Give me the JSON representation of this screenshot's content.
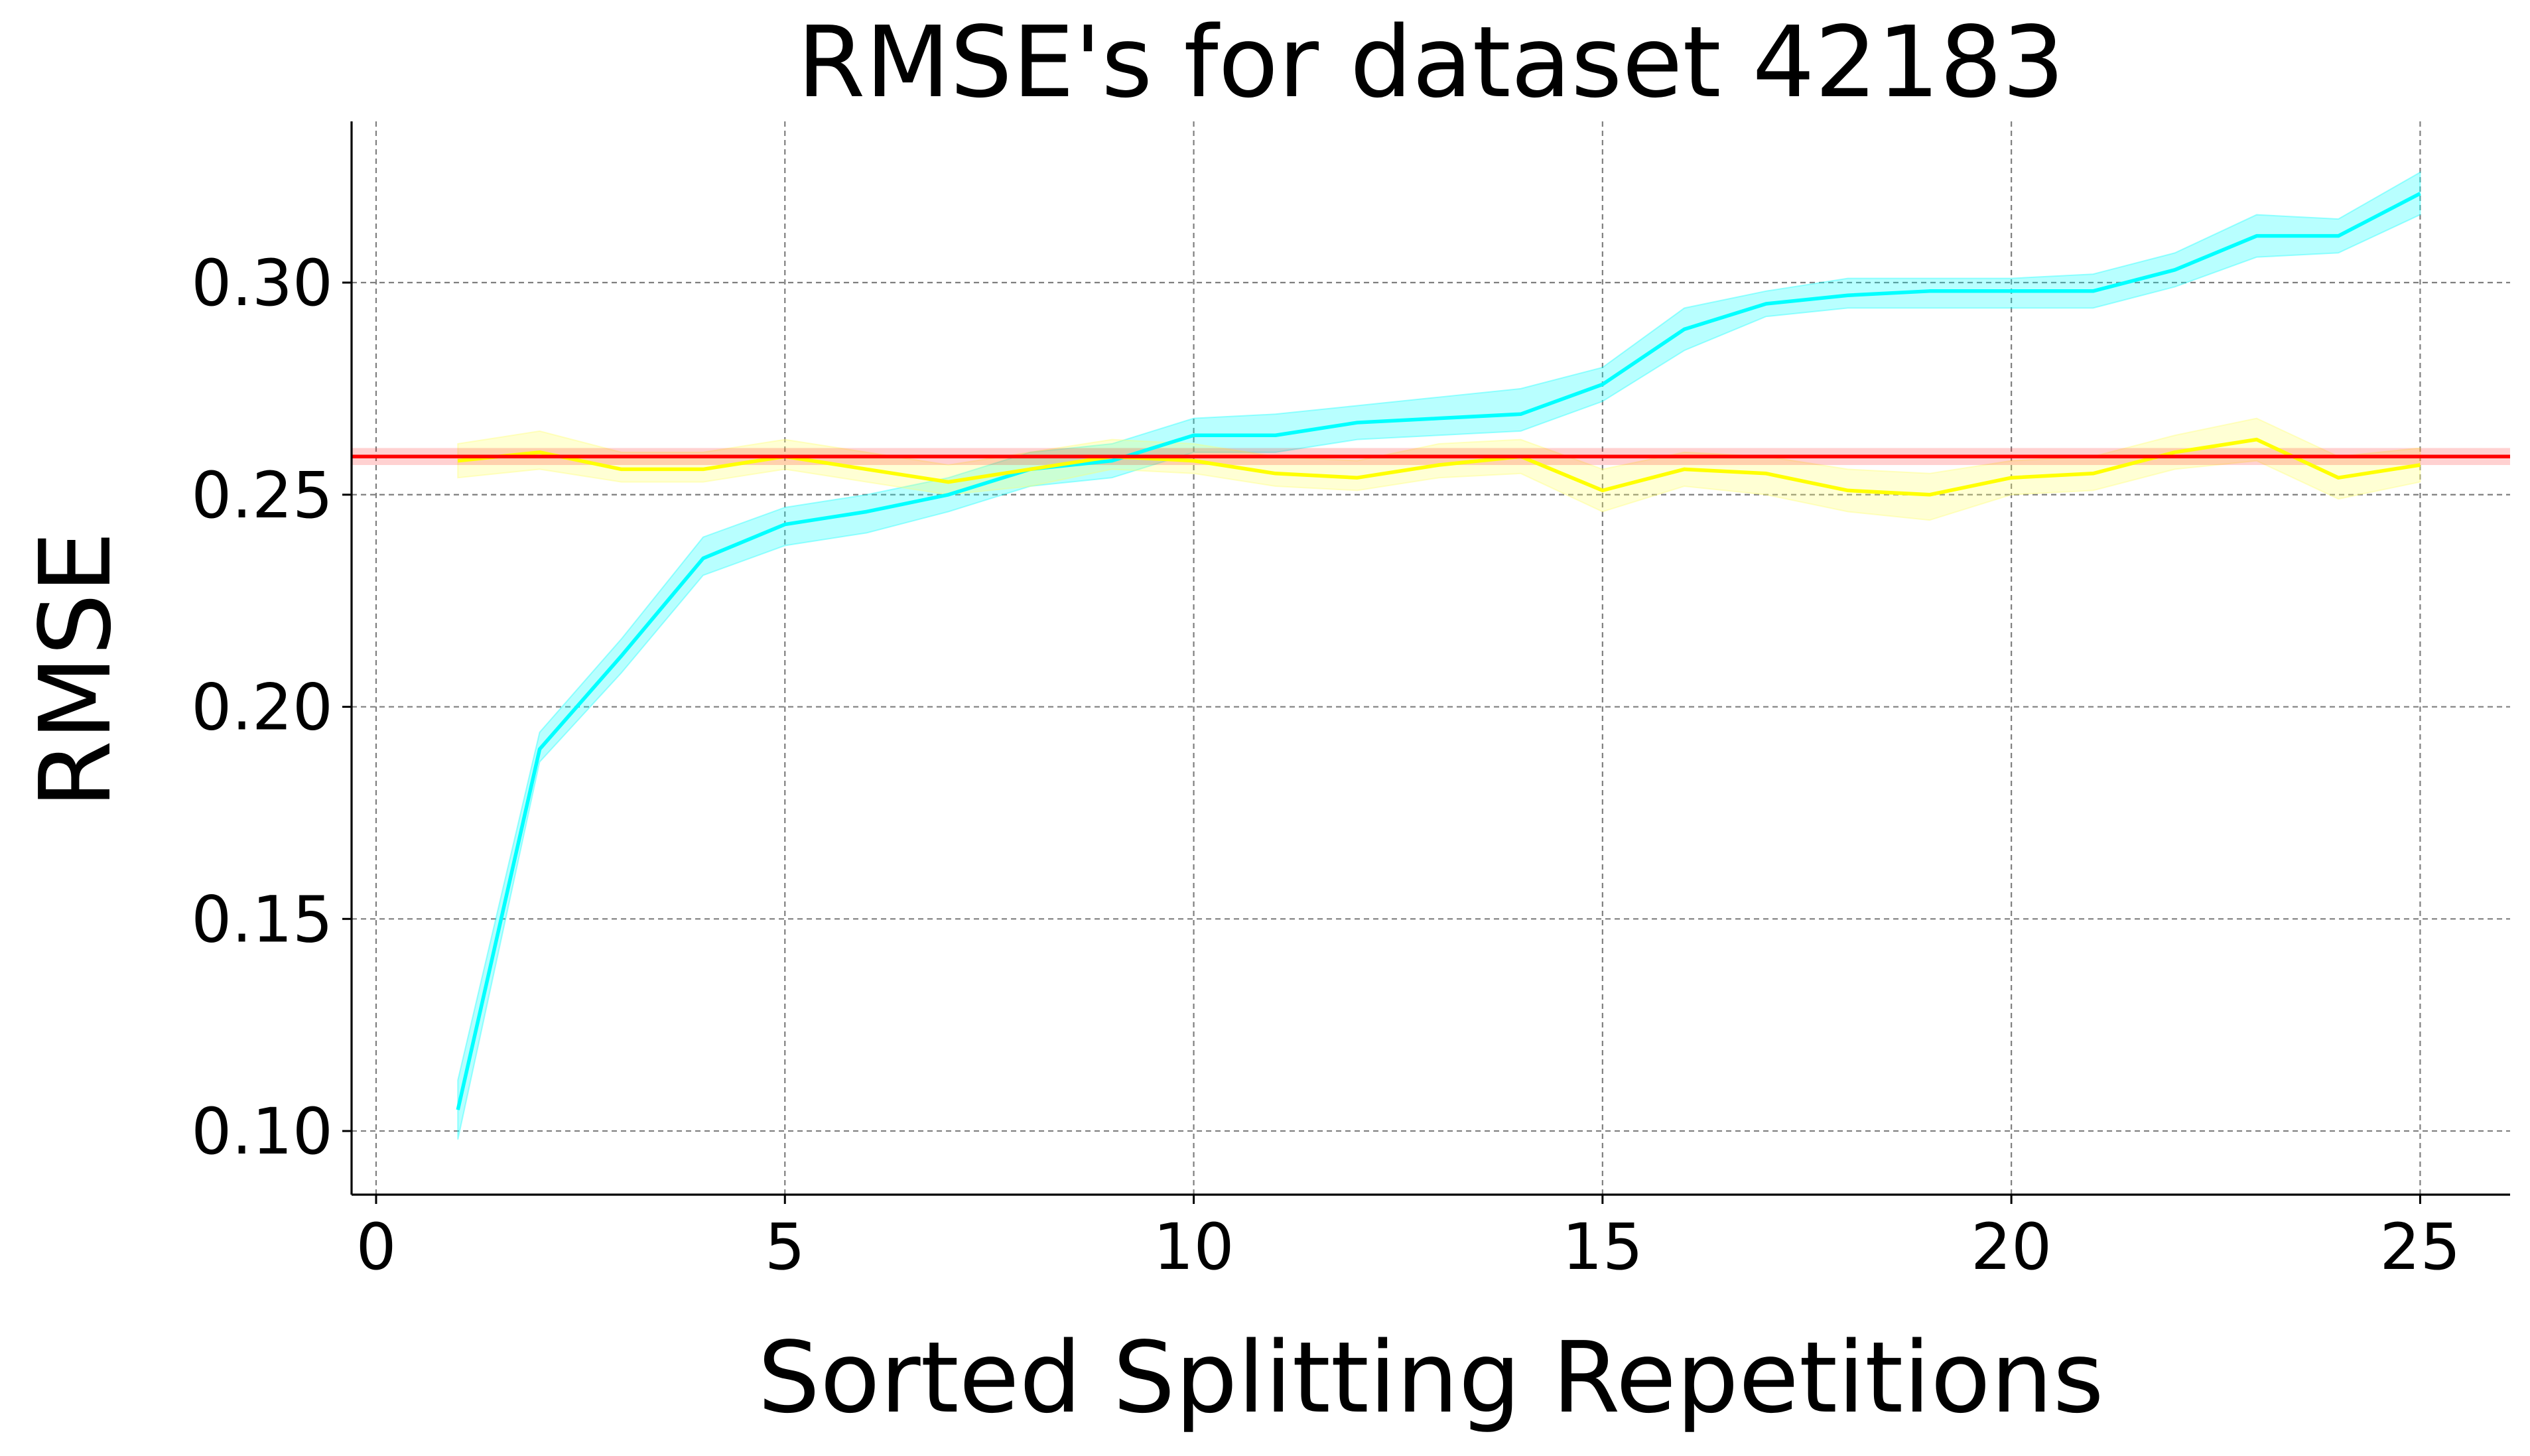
{
  "chart_data": {
    "type": "line",
    "title": "RMSE's for dataset 42183",
    "xlabel": "Sorted Splitting Repetitions",
    "ylabel": "RMSE",
    "xlim": [
      -0.3,
      26.1
    ],
    "ylim": [
      0.085,
      0.338
    ],
    "xticks": [
      0,
      5,
      10,
      15,
      20,
      25
    ],
    "xtick_labels": [
      "0",
      "5",
      "10",
      "15",
      "20",
      "25"
    ],
    "yticks": [
      0.1,
      0.15,
      0.2,
      0.25,
      0.3
    ],
    "ytick_labels": [
      "0.10",
      "0.15",
      "0.20",
      "0.25",
      "0.30"
    ],
    "grid": true,
    "series": [
      {
        "color": "#00ffff",
        "band_color": "#00ffff",
        "x": [
          1,
          2,
          3,
          4,
          5,
          6,
          7,
          8,
          9,
          10,
          11,
          12,
          13,
          14,
          15,
          16,
          17,
          18,
          19,
          20,
          21,
          22,
          23,
          24,
          25
        ],
        "y": [
          0.105,
          0.19,
          0.212,
          0.235,
          0.243,
          0.246,
          0.25,
          0.256,
          0.258,
          0.264,
          0.264,
          0.267,
          0.268,
          0.269,
          0.276,
          0.289,
          0.295,
          0.297,
          0.298,
          0.298,
          0.298,
          0.303,
          0.311,
          0.311,
          0.321
        ],
        "lower": [
          0.098,
          0.187,
          0.208,
          0.231,
          0.238,
          0.241,
          0.246,
          0.252,
          0.254,
          0.26,
          0.26,
          0.263,
          0.264,
          0.265,
          0.272,
          0.284,
          0.292,
          0.294,
          0.294,
          0.294,
          0.294,
          0.299,
          0.306,
          0.307,
          0.316
        ],
        "upper": [
          0.112,
          0.194,
          0.216,
          0.24,
          0.247,
          0.25,
          0.254,
          0.26,
          0.262,
          0.268,
          0.269,
          0.271,
          0.273,
          0.275,
          0.28,
          0.294,
          0.298,
          0.301,
          0.301,
          0.301,
          0.302,
          0.307,
          0.316,
          0.315,
          0.326
        ]
      },
      {
        "color": "#ffff00",
        "band_color": "#ffff66",
        "x": [
          1,
          2,
          3,
          4,
          5,
          6,
          7,
          8,
          9,
          10,
          11,
          12,
          13,
          14,
          15,
          16,
          17,
          18,
          19,
          20,
          21,
          22,
          23,
          24,
          25
        ],
        "y": [
          0.258,
          0.26,
          0.256,
          0.256,
          0.259,
          0.256,
          0.253,
          0.256,
          0.259,
          0.258,
          0.255,
          0.254,
          0.257,
          0.259,
          0.251,
          0.256,
          0.255,
          0.251,
          0.25,
          0.254,
          0.255,
          0.26,
          0.263,
          0.254,
          0.257
        ],
        "lower": [
          0.254,
          0.256,
          0.253,
          0.253,
          0.256,
          0.253,
          0.25,
          0.252,
          0.256,
          0.255,
          0.252,
          0.251,
          0.254,
          0.255,
          0.246,
          0.252,
          0.25,
          0.246,
          0.244,
          0.25,
          0.251,
          0.256,
          0.258,
          0.249,
          0.253
        ],
        "upper": [
          0.262,
          0.265,
          0.26,
          0.26,
          0.263,
          0.26,
          0.257,
          0.26,
          0.263,
          0.262,
          0.259,
          0.258,
          0.262,
          0.263,
          0.256,
          0.26,
          0.259,
          0.256,
          0.255,
          0.258,
          0.259,
          0.264,
          0.268,
          0.259,
          0.261
        ]
      }
    ],
    "reference_line": {
      "color": "#ff0000",
      "y": 0.259,
      "band_lower": 0.257,
      "band_upper": 0.261
    }
  }
}
